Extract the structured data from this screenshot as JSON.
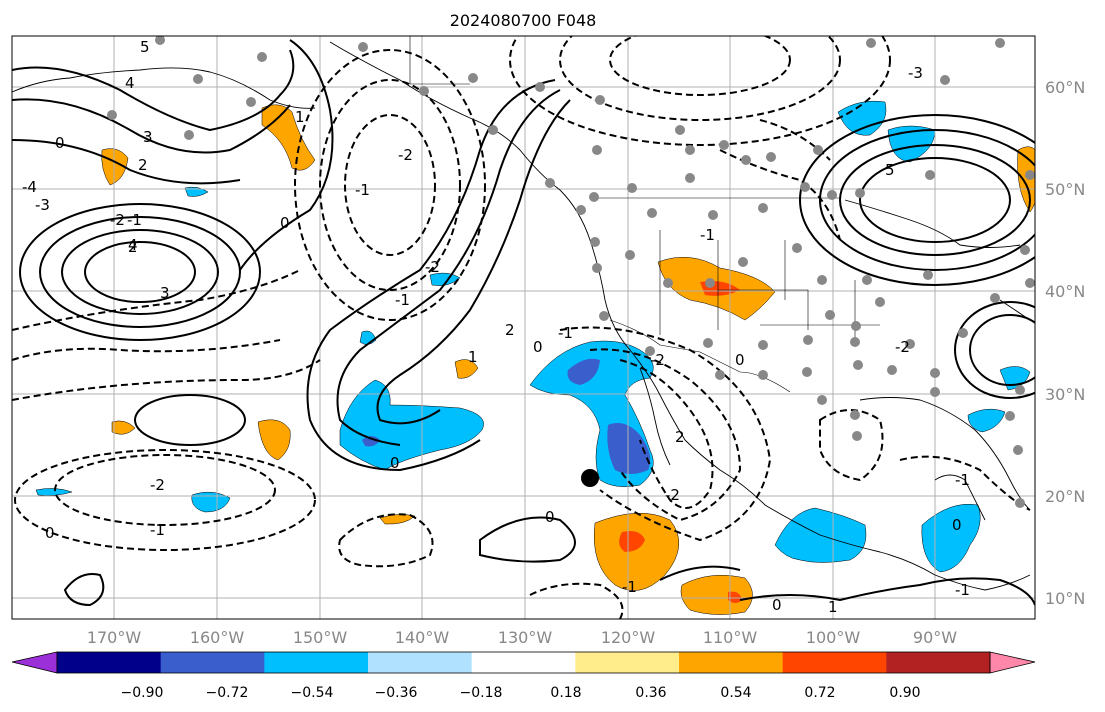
{
  "title": "2024080700 F048",
  "lon_ticks": [
    "170°W",
    "160°W",
    "150°W",
    "140°W",
    "130°W",
    "120°W",
    "110°W",
    "100°W",
    "90°W"
  ],
  "lat_ticks": [
    "60°N",
    "50°N",
    "40°N",
    "30°N",
    "20°N",
    "10°N"
  ],
  "colorbar": {
    "colors": [
      "#9b30d9",
      "#00008b",
      "#3a5fcd",
      "#00bfff",
      "#b0e2ff",
      "#ffffff",
      "#ffec8b",
      "#ffa500",
      "#ff4500",
      "#b22222",
      "#ff88aa"
    ],
    "ticks": [
      "−0.90",
      "−0.72",
      "−0.54",
      "−0.36",
      "−0.18",
      "0.18",
      "0.36",
      "0.54",
      "0.72",
      "0.90"
    ]
  },
  "contour_labels": [
    "5",
    "4",
    "3",
    "2",
    "0",
    "-4",
    "-3",
    "-2",
    "-1",
    "1",
    "2",
    "4",
    "3",
    "-2",
    "-1",
    "0",
    "-1",
    "-2",
    "2",
    "1",
    "0",
    "-1",
    "0",
    "-2",
    "-1",
    "0",
    "-2",
    "0",
    "2",
    "-1",
    "-2",
    "0",
    "-1",
    "5",
    "-3",
    "-2",
    "-1",
    "0",
    "1",
    "-1",
    "0"
  ],
  "marker": "storm-center"
}
